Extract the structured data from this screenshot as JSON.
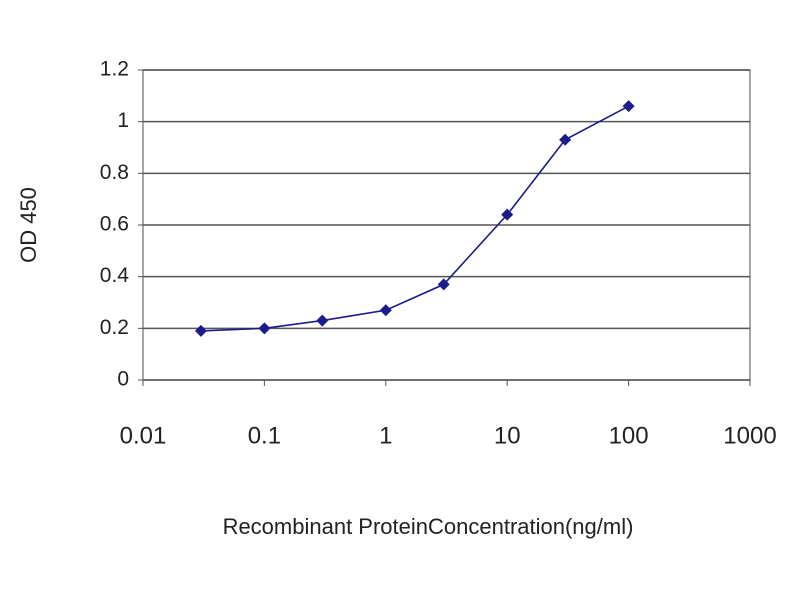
{
  "chart_data": {
    "type": "line",
    "y_label": "OD 450",
    "x_label": "Recombinant ProteinConcentration(ng/ml)",
    "x": [
      0.03,
      0.1,
      0.3,
      1,
      3,
      10,
      30,
      100
    ],
    "values": [
      0.19,
      0.2,
      0.23,
      0.27,
      0.37,
      0.64,
      0.93,
      1.06
    ],
    "color": "#1c1c8a",
    "xscale": "log",
    "xlim": [
      0.01,
      1000
    ],
    "xticks": [
      0.01,
      0.1,
      1,
      10,
      100,
      1000
    ],
    "ylim": [
      0,
      1.2
    ],
    "yticks": [
      0,
      0.2,
      0.4,
      0.6,
      0.8,
      1,
      1.2
    ],
    "grid": true
  }
}
